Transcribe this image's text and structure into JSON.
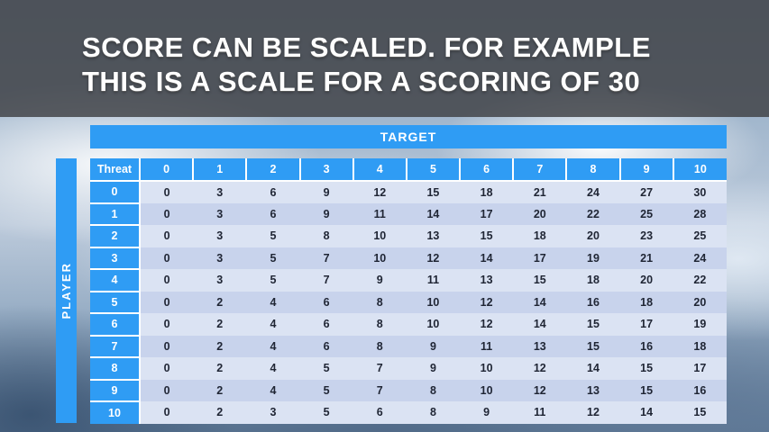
{
  "slide": {
    "title_line1": "SCORE CAN BE SCALED. FOR EXAMPLE",
    "title_line2": "THIS IS A SCALE FOR A SCORING OF 30"
  },
  "table": {
    "target_label": "TARGET",
    "player_label": "PLAYER",
    "threat_label": "Threat",
    "col_headers": [
      "0",
      "1",
      "2",
      "3",
      "4",
      "5",
      "6",
      "7",
      "8",
      "9",
      "10"
    ],
    "rows": [
      {
        "label": "0",
        "values": [
          0,
          3,
          6,
          9,
          12,
          15,
          18,
          21,
          24,
          27,
          30
        ]
      },
      {
        "label": "1",
        "values": [
          0,
          3,
          6,
          9,
          11,
          14,
          17,
          20,
          22,
          25,
          28
        ]
      },
      {
        "label": "2",
        "values": [
          0,
          3,
          5,
          8,
          10,
          13,
          15,
          18,
          20,
          23,
          25
        ]
      },
      {
        "label": "3",
        "values": [
          0,
          3,
          5,
          7,
          10,
          12,
          14,
          17,
          19,
          21,
          24
        ]
      },
      {
        "label": "4",
        "values": [
          0,
          3,
          5,
          7,
          9,
          11,
          13,
          15,
          18,
          20,
          22
        ]
      },
      {
        "label": "5",
        "values": [
          0,
          2,
          4,
          6,
          8,
          10,
          12,
          14,
          16,
          18,
          20
        ]
      },
      {
        "label": "6",
        "values": [
          0,
          2,
          4,
          6,
          8,
          10,
          12,
          14,
          15,
          17,
          19
        ]
      },
      {
        "label": "7",
        "values": [
          0,
          2,
          4,
          6,
          8,
          9,
          11,
          13,
          15,
          16,
          18
        ]
      },
      {
        "label": "8",
        "values": [
          0,
          2,
          4,
          5,
          7,
          9,
          10,
          12,
          14,
          15,
          17
        ]
      },
      {
        "label": "9",
        "values": [
          0,
          2,
          4,
          5,
          7,
          8,
          10,
          12,
          13,
          15,
          16
        ]
      },
      {
        "label": "10",
        "values": [
          0,
          2,
          3,
          5,
          6,
          8,
          9,
          11,
          12,
          14,
          15
        ]
      }
    ]
  },
  "colors": {
    "accent_blue": "#2f9cf4",
    "row_light": "#dbe3f3",
    "row_dark": "#c8d3ec",
    "title_band": "#3e4043"
  }
}
